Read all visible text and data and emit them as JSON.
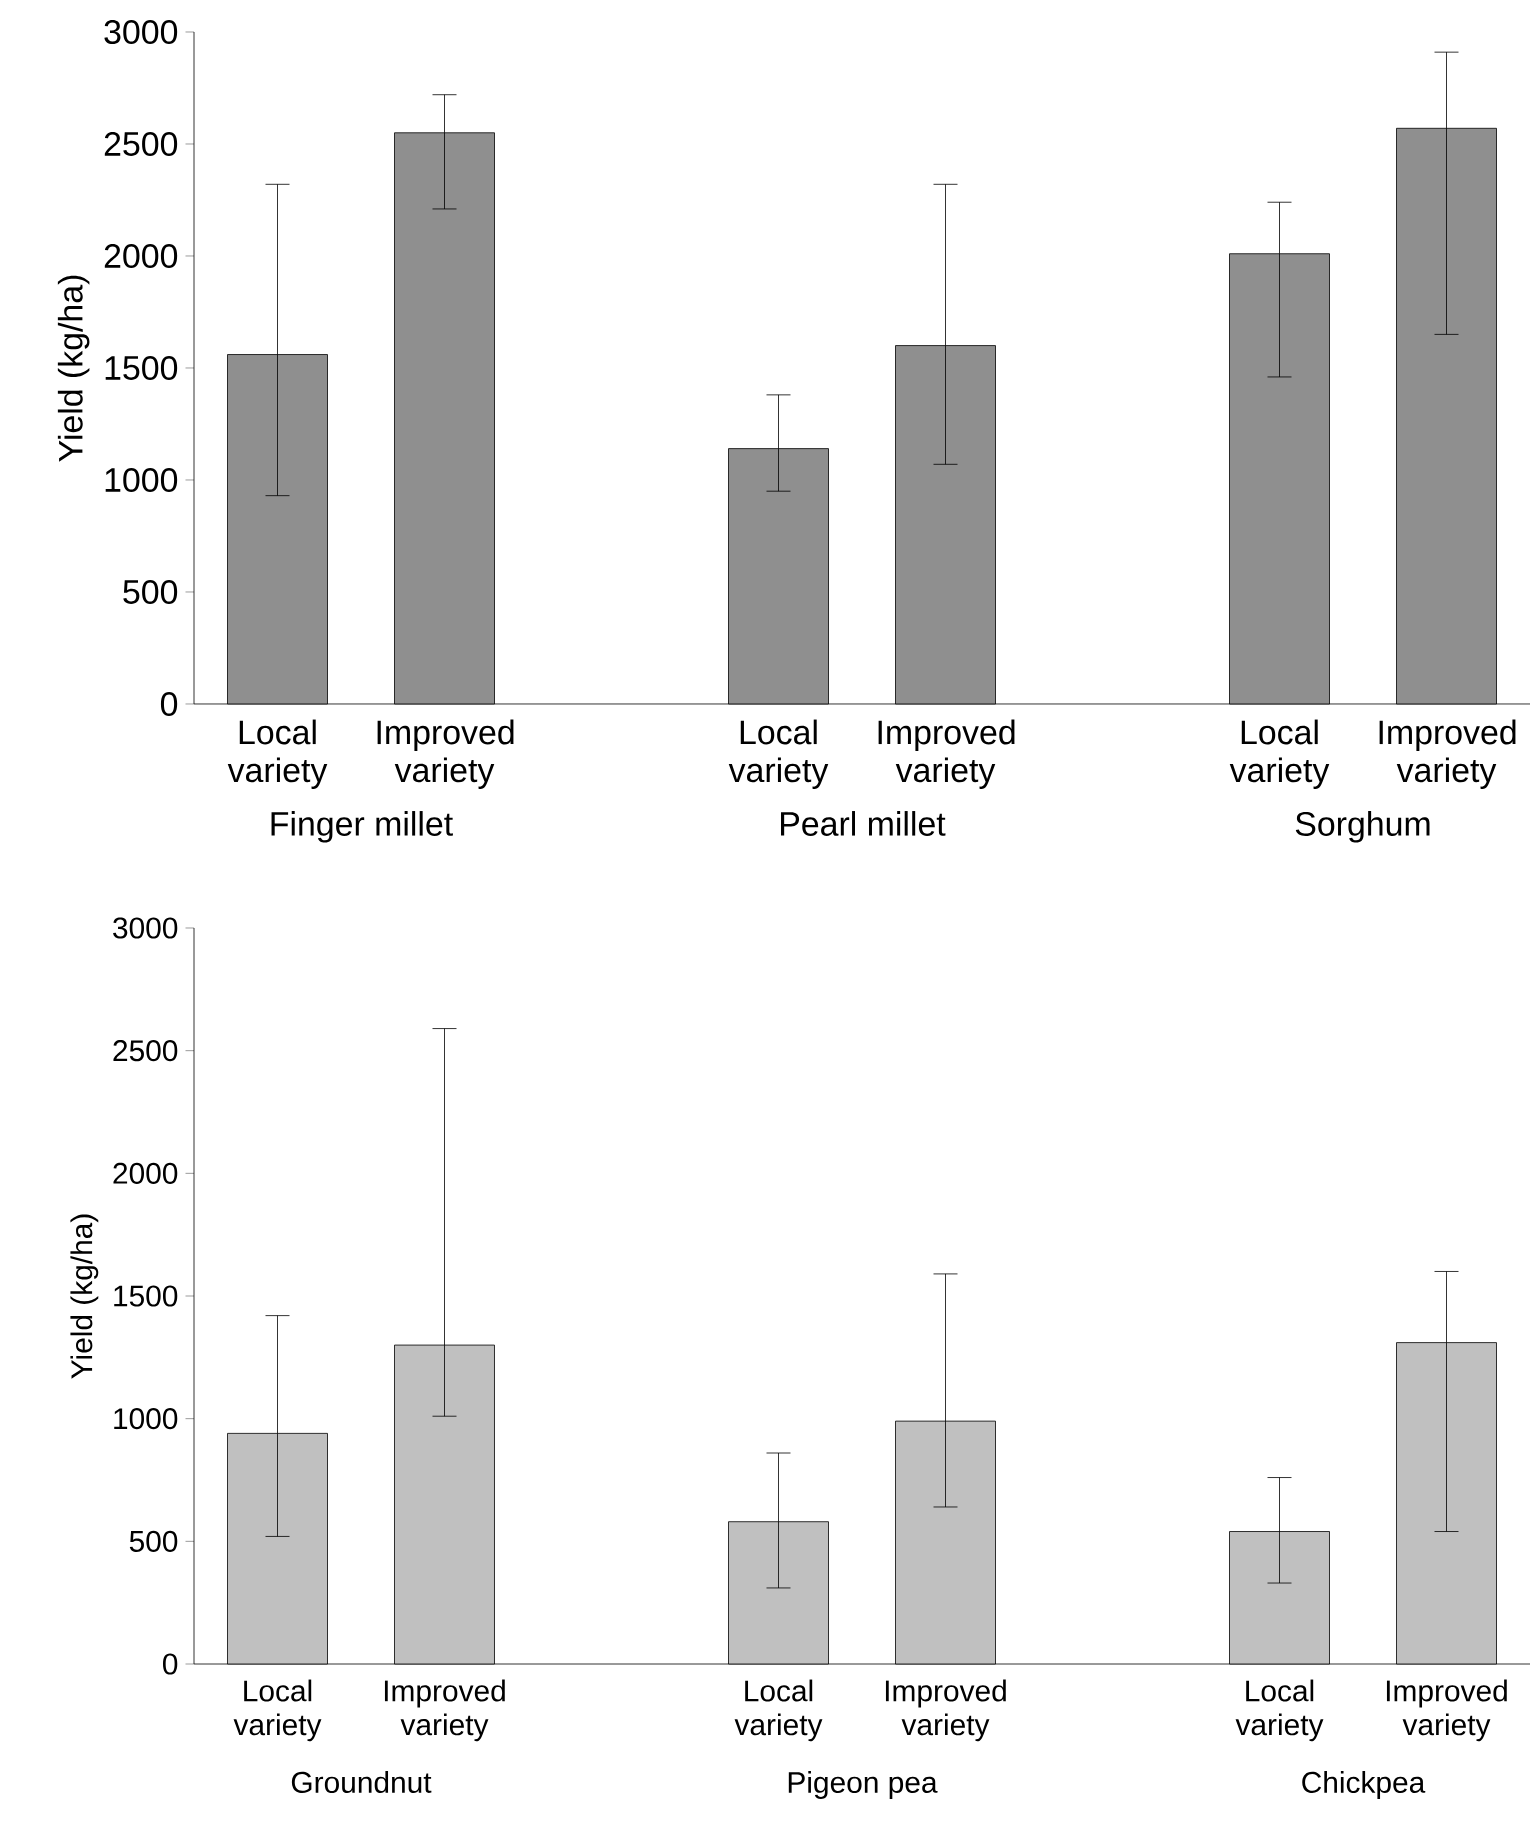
{
  "chart_data": [
    {
      "type": "bar",
      "ylabel": "Yield (kg/ha)",
      "categories": [
        "Local variety",
        "Improved variety",
        null,
        "Local variety",
        "Improved variety",
        null,
        "Local variety",
        "Improved variety"
      ],
      "values": [
        1560,
        2550,
        null,
        1140,
        1600,
        null,
        2010,
        2570
      ],
      "errors": [
        [
          930,
          2320
        ],
        [
          2210,
          2720
        ],
        null,
        [
          950,
          1380
        ],
        [
          1070,
          2320
        ],
        null,
        [
          1460,
          2240
        ],
        [
          1650,
          2910
        ]
      ],
      "color": "#8f8f8f",
      "ylim": [
        0,
        3000
      ],
      "yticks": [
        0,
        500,
        1000,
        1500,
        2000,
        2500,
        3000
      ],
      "grid": false,
      "annotations": [
        "Finger millet",
        "Pearl millet",
        "Sorghum"
      ]
    },
    {
      "type": "bar",
      "ylabel": "Yield (kg/ha)",
      "categories": [
        "Local variety",
        "Improved variety",
        null,
        "Local variety",
        "Improved variety",
        null,
        "Local variety",
        "Improved variety"
      ],
      "values": [
        940,
        1300,
        null,
        580,
        990,
        null,
        540,
        1310
      ],
      "errors": [
        [
          520,
          1420
        ],
        [
          1010,
          2590
        ],
        null,
        [
          310,
          860
        ],
        [
          640,
          1590
        ],
        null,
        [
          330,
          760
        ],
        [
          540,
          1600
        ]
      ],
      "color": "#c0c0c0",
      "ylim": [
        0,
        3000
      ],
      "yticks": [
        0,
        500,
        1000,
        1500,
        2000,
        2500,
        3000
      ],
      "grid": false,
      "annotations": [
        "Groundnut",
        "Pigeon pea",
        "Chickpea"
      ]
    }
  ]
}
